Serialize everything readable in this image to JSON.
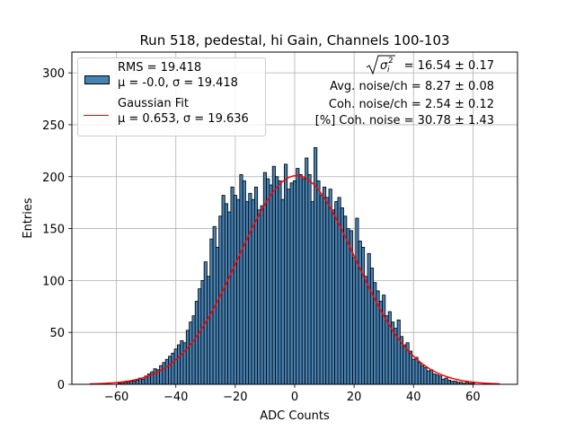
{
  "chart_data": {
    "type": "bar",
    "title": "Run 518, pedestal, hi Gain, Channels 100-103",
    "xlabel": "ADC Counts",
    "ylabel": "Entries",
    "xlim": [
      -75,
      75
    ],
    "ylim": [
      0,
      320
    ],
    "xticks": [
      -60,
      -40,
      -20,
      0,
      20,
      40,
      60
    ],
    "yticks": [
      0,
      50,
      100,
      150,
      200,
      250,
      300
    ],
    "grid": true,
    "bin_width": 1,
    "histogram": {
      "name": "RMS = 19.418",
      "stats": "μ = -0.0, σ = 19.418",
      "color": "#4682b4",
      "bin_centers": [
        -59,
        -58,
        -57,
        -56,
        -55,
        -54,
        -53,
        -52,
        -51,
        -50,
        -49,
        -48,
        -47,
        -46,
        -45,
        -44,
        -43,
        -42,
        -41,
        -40,
        -39,
        -38,
        -37,
        -36,
        -35,
        -34,
        -33,
        -32,
        -31,
        -30,
        -29,
        -28,
        -27,
        -26,
        -25,
        -24,
        -23,
        -22,
        -21,
        -20,
        -19,
        -18,
        -17,
        -16,
        -15,
        -14,
        -13,
        -12,
        -11,
        -10,
        -9,
        -8,
        -7,
        -6,
        -5,
        -4,
        -3,
        -2,
        -1,
        0,
        1,
        2,
        3,
        4,
        5,
        6,
        7,
        8,
        9,
        10,
        11,
        12,
        13,
        14,
        15,
        16,
        17,
        18,
        19,
        20,
        21,
        22,
        23,
        24,
        25,
        26,
        27,
        28,
        29,
        30,
        31,
        32,
        33,
        34,
        35,
        36,
        37,
        38,
        39,
        40,
        41,
        42,
        43,
        44,
        45,
        46,
        47,
        48,
        49,
        50,
        51,
        52,
        53,
        54,
        55,
        56,
        57,
        58,
        59,
        60
      ],
      "counts": [
        1,
        1,
        2,
        2,
        3,
        3,
        4,
        6,
        5,
        8,
        10,
        12,
        15,
        14,
        18,
        21,
        24,
        27,
        30,
        34,
        38,
        42,
        40,
        52,
        60,
        66,
        80,
        92,
        100,
        118,
        104,
        140,
        152,
        132,
        162,
        182,
        174,
        166,
        190,
        182,
        178,
        202,
        196,
        176,
        184,
        178,
        190,
        168,
        172,
        204,
        198,
        192,
        210,
        200,
        196,
        178,
        212,
        188,
        194,
        196,
        208,
        202,
        198,
        218,
        202,
        176,
        228,
        196,
        182,
        190,
        180,
        188,
        168,
        176,
        180,
        170,
        162,
        150,
        148,
        122,
        160,
        138,
        132,
        104,
        126,
        112,
        98,
        90,
        80,
        86,
        66,
        70,
        60,
        54,
        62,
        46,
        38,
        40,
        32,
        24,
        26,
        21,
        18,
        16,
        13,
        14,
        10,
        9,
        8,
        5,
        6,
        4,
        3,
        3,
        2,
        2,
        1,
        2,
        1,
        1
      ]
    },
    "fit": {
      "name": "Gaussian Fit",
      "stats": "μ = 0.653, σ = 19.636",
      "color": "#ff0000",
      "mu": 0.653,
      "sigma": 19.636,
      "amplitude": 201,
      "x_range": [
        -69,
        69
      ]
    },
    "legend_position": "upper left",
    "annotations": {
      "sigma_value": "= 16.54 ± 0.17",
      "avg_noise": "Avg. noise/ch = 8.27 ± 0.08",
      "coh_noise": "Coh. noise/ch = 2.54 ± 0.12",
      "coh_percent": "[%] Coh. noise = 30.78 ± 1.43"
    }
  }
}
